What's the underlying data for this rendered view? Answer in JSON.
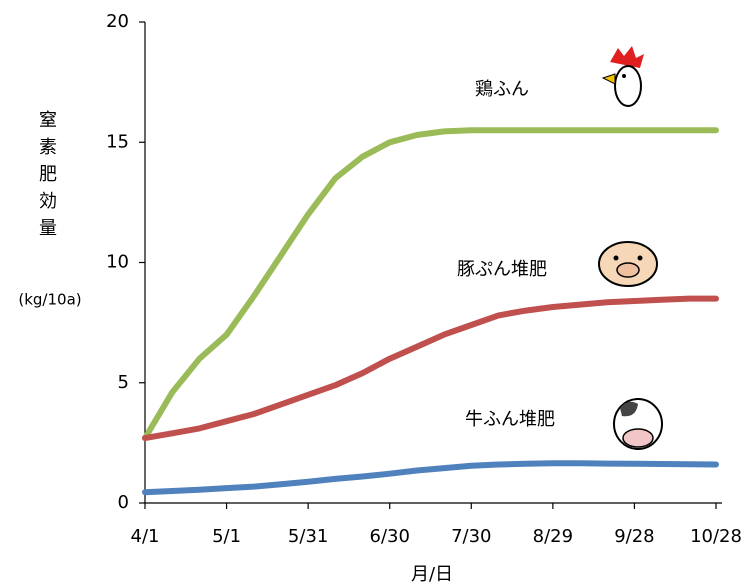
{
  "chart_data": {
    "type": "line",
    "y_label": "窒素肥効量",
    "y_unit": "(kg/10a)",
    "x_label": "月/日",
    "x": [
      "4/1",
      "4/11",
      "4/21",
      "5/1",
      "5/11",
      "5/21",
      "5/31",
      "6/10",
      "6/20",
      "6/30",
      "7/10",
      "7/20",
      "7/30",
      "8/9",
      "8/19",
      "8/29",
      "9/8",
      "9/18",
      "9/28",
      "10/8",
      "10/18",
      "10/28"
    ],
    "series": [
      {
        "name": "鶏ふん",
        "color": "#9bbb59",
        "values": [
          2.7,
          4.6,
          6.0,
          7.0,
          8.6,
          10.3,
          12.0,
          13.5,
          14.4,
          15.0,
          15.3,
          15.45,
          15.5,
          15.5,
          15.5,
          15.5,
          15.5,
          15.5,
          15.5,
          15.5,
          15.5,
          15.5
        ]
      },
      {
        "name": "豚ぷん堆肥",
        "color": "#c0504d",
        "values": [
          2.7,
          2.9,
          3.1,
          3.4,
          3.7,
          4.1,
          4.5,
          4.9,
          5.4,
          6.0,
          6.5,
          7.0,
          7.4,
          7.8,
          8.0,
          8.15,
          8.25,
          8.35,
          8.4,
          8.45,
          8.5,
          8.5
        ]
      },
      {
        "name": "牛ふん堆肥",
        "color": "#4f81bd",
        "values": [
          0.45,
          0.5,
          0.55,
          0.62,
          0.68,
          0.78,
          0.88,
          1.0,
          1.1,
          1.22,
          1.35,
          1.45,
          1.55,
          1.6,
          1.63,
          1.65,
          1.65,
          1.64,
          1.63,
          1.62,
          1.61,
          1.6
        ]
      }
    ],
    "xlim": [
      "4/1",
      "10/28"
    ],
    "xticks": [
      "4/1",
      "5/1",
      "5/31",
      "6/30",
      "7/30",
      "8/29",
      "9/28",
      "10/28"
    ],
    "ylim": [
      0,
      20
    ],
    "yticks": [
      0,
      5,
      10,
      15,
      20
    ]
  }
}
